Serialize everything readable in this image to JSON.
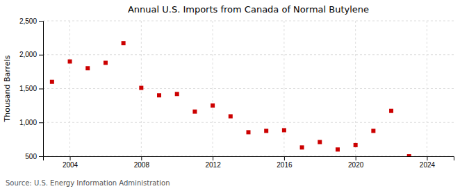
{
  "chart_data": {
    "type": "scatter",
    "title": "Annual U.S. Imports from Canada of Normal Butylene",
    "ylabel": "Thousand Barrels",
    "annotations": [
      "Source: U.S. Energy Information Administration"
    ],
    "x": [
      2003,
      2004,
      2005,
      2006,
      2007,
      2008,
      2009,
      2010,
      2011,
      2012,
      2013,
      2014,
      2015,
      2016,
      2017,
      2018,
      2019,
      2020,
      2021,
      2022,
      2023
    ],
    "values": [
      1600,
      1900,
      1800,
      1880,
      2170,
      1510,
      1400,
      1420,
      1160,
      1250,
      1090,
      855,
      875,
      885,
      630,
      710,
      600,
      665,
      875,
      1170,
      500
    ],
    "color": "#cc0000",
    "marker": "square",
    "xlim": [
      2002.5,
      2025.5
    ],
    "ylim": [
      500,
      2500
    ],
    "xticks": [
      2004,
      2008,
      2012,
      2016,
      2020,
      2024
    ],
    "yticks": [
      500,
      {
        "value": 1000,
        "label": "1,000"
      },
      {
        "value": 1500,
        "label": "1,500"
      },
      {
        "value": 2000,
        "label": "2,000"
      },
      {
        "value": 2500,
        "label": "2,500"
      }
    ],
    "grid": true
  }
}
